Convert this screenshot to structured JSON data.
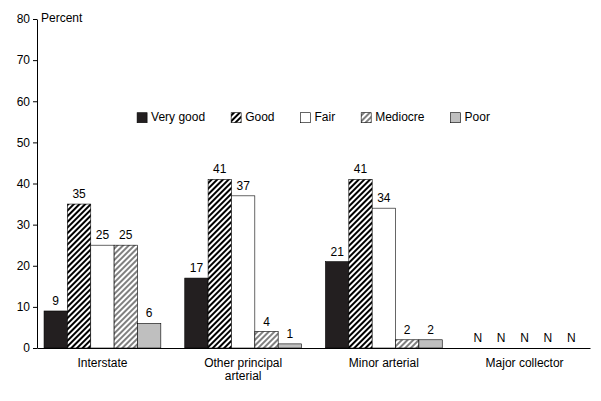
{
  "chart_data": {
    "type": "bar",
    "ylabel": "Percent",
    "categories": [
      "Interstate",
      "Other principal arterial",
      "Minor arterial",
      "Major collector"
    ],
    "series": [
      {
        "name": "Very good",
        "color": "#231f20",
        "values": [
          9,
          17,
          21,
          null
        ],
        "value_labels": [
          "9",
          "17",
          "21",
          "N"
        ]
      },
      {
        "name": "Good",
        "color": "#000000",
        "values": [
          35,
          41,
          41,
          null
        ],
        "value_labels": [
          "35",
          "41",
          "41",
          "N"
        ]
      },
      {
        "name": "Fair",
        "color": "#ffffff",
        "values": [
          25,
          37,
          34,
          null
        ],
        "value_labels": [
          "25",
          "37",
          "34",
          "N"
        ]
      },
      {
        "name": "Mediocre",
        "color": "#808080",
        "values": [
          25,
          4,
          2,
          null
        ],
        "value_labels": [
          "25",
          "4",
          "2",
          "N"
        ]
      },
      {
        "name": "Poor",
        "color": "#bfbfbf",
        "values": [
          6,
          1,
          2,
          null
        ],
        "value_labels": [
          "6",
          "1",
          "2",
          "N"
        ]
      }
    ],
    "ylim": [
      0,
      80
    ],
    "yticks": [
      0,
      10,
      20,
      30,
      40,
      50,
      60,
      70,
      80
    ],
    "grid": false,
    "legend": "top",
    "data_labels": true
  }
}
